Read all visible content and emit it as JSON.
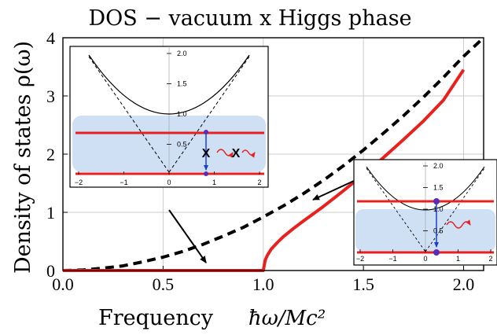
{
  "chart_data": {
    "type": "line",
    "title": "DOS − vacuum x Higgs phase",
    "xlabel": "Frequency",
    "xlabel_formula": "ħω/Mc²",
    "ylabel": "Density of states ρ(ω)",
    "xlim": [
      0,
      2.1
    ],
    "ylim": [
      0,
      4
    ],
    "x_ticks": [
      "0.0",
      "0.5",
      "1.0",
      "1.5",
      "2.0"
    ],
    "y_ticks": [
      "0",
      "1",
      "2",
      "3",
      "4"
    ],
    "grid": true,
    "series": [
      {
        "style": "dashed",
        "color": "#000000",
        "x": [
          0,
          0.1,
          0.2,
          0.3,
          0.4,
          0.5,
          0.6,
          0.7,
          0.8,
          0.9,
          1.0,
          1.1,
          1.2,
          1.3,
          1.4,
          1.5,
          1.6,
          1.7,
          1.8,
          1.9,
          2.0,
          2.1
        ],
        "y": [
          0,
          0.01,
          0.04,
          0.08,
          0.15,
          0.23,
          0.33,
          0.45,
          0.59,
          0.74,
          0.92,
          1.11,
          1.32,
          1.55,
          1.8,
          2.07,
          2.36,
          2.66,
          2.98,
          3.32,
          3.68,
          4.0
        ]
      },
      {
        "style": "solid",
        "color": "#e8201e",
        "x": [
          0,
          0.5,
          0.99,
          1.0,
          1.01,
          1.02,
          1.04,
          1.07,
          1.1,
          1.15,
          1.2,
          1.3,
          1.4,
          1.5,
          1.6,
          1.7,
          1.8,
          1.9,
          2.0
        ],
        "y": [
          0,
          0,
          0,
          0,
          0.18,
          0.26,
          0.37,
          0.48,
          0.58,
          0.72,
          0.85,
          1.1,
          1.37,
          1.65,
          1.94,
          2.25,
          2.57,
          2.93,
          3.45
        ]
      }
    ],
    "insets": [
      {
        "position": "top-left",
        "x_ticks": [
          "−2",
          "−1",
          "0",
          "1",
          "2"
        ],
        "y_ticks": [
          "0.5",
          "1.0",
          "1.5",
          "2.0"
        ],
        "markers": [
          "X",
          "X"
        ]
      },
      {
        "position": "right",
        "x_ticks": [
          "−2",
          "−1",
          "0",
          "1",
          "2"
        ],
        "y_ticks": [
          "0.5",
          "1.0",
          "1.5",
          "2.0"
        ]
      }
    ],
    "colors": {
      "red": "#e8201e",
      "band": "#cfe0f5",
      "arrow": "#1a3fd6"
    }
  }
}
